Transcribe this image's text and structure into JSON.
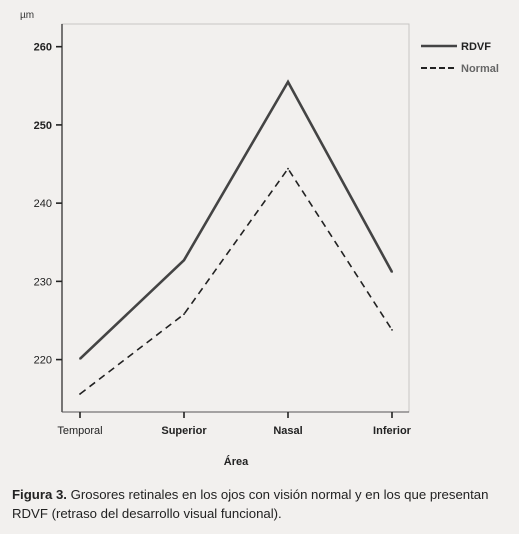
{
  "chart_data": {
    "type": "line",
    "unit_label": "µm",
    "xlabel": "Área",
    "categories": [
      "Temporal",
      "Superior",
      "Nasal",
      "Inferior"
    ],
    "yticks": [
      220,
      230,
      240,
      250,
      260
    ],
    "ylim": [
      213.3,
      262.9
    ],
    "series": [
      {
        "name": "RDVF",
        "values": [
          220.1,
          232.7,
          255.5,
          231.2
        ],
        "color": "#444444",
        "style": "solid"
      },
      {
        "name": "Normal",
        "values": [
          215.6,
          225.8,
          244.4,
          223.8
        ],
        "color": "#222222",
        "style": "dashed"
      }
    ],
    "grid": false,
    "legend_position": "top-right"
  },
  "caption": {
    "figure_label": "Figura 3.",
    "text": "Grosores retinales en los ojos con visión normal y en los que presentan RDVF (retraso del desarrollo visual funcional)."
  }
}
